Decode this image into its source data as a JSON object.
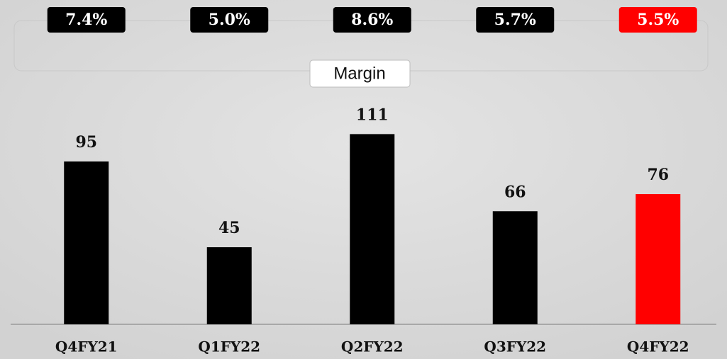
{
  "chart_data": {
    "type": "bar",
    "categories": [
      "Q4FY21",
      "Q1FY22",
      "Q2FY22",
      "Q3FY22",
      "Q4FY22"
    ],
    "values": [
      95,
      45,
      111,
      66,
      76
    ],
    "colors": [
      "#000000",
      "#000000",
      "#000000",
      "#000000",
      "#ff0000"
    ],
    "margin": {
      "label": "Margin",
      "values": [
        7.4,
        5.0,
        8.6,
        5.7,
        5.5
      ],
      "value_labels": [
        "7.4%",
        "5.0%",
        "8.6%",
        "5.7%",
        "5.5%"
      ]
    }
  }
}
